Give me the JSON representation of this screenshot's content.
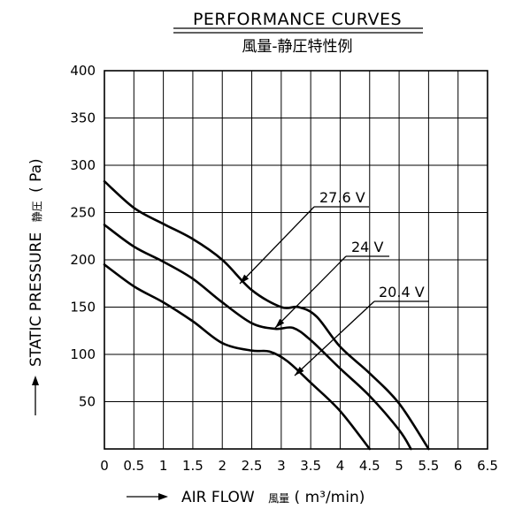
{
  "chart_data": {
    "type": "line",
    "title": "PERFORMANCE CURVES",
    "subtitle": "風量-静圧特性例",
    "xlabel": "AIR FLOW",
    "xlabel_jp": "風量",
    "xlabel_unit": "( m³/min)",
    "ylabel": "STATIC PRESSURE",
    "ylabel_jp": "静圧",
    "ylabel_unit": "( Pa)",
    "xlim": [
      0,
      6.5
    ],
    "ylim": [
      0,
      400
    ],
    "xticks": [
      0,
      0.5,
      1,
      1.5,
      2,
      2.5,
      3,
      3.5,
      4,
      4.5,
      5,
      5.5,
      6,
      6.5
    ],
    "xtick_labels": [
      "0",
      "0.5",
      "1",
      "1.5",
      "2",
      "2.5",
      "3",
      "3.5",
      "4",
      "4.5",
      "5",
      "5.5",
      "6",
      "6.5"
    ],
    "yticks": [
      50,
      100,
      150,
      200,
      250,
      300,
      350,
      400
    ],
    "ytick_labels": [
      "50",
      "100",
      "150",
      "200",
      "250",
      "300",
      "350",
      "400"
    ],
    "grid": true,
    "legend": "inline labels",
    "series": [
      {
        "name": "27.6 V",
        "x": [
          0,
          0.5,
          1,
          1.5,
          2,
          2.5,
          3,
          3.3,
          3.6,
          4,
          4.5,
          5,
          5.5
        ],
        "y": [
          283,
          255,
          238,
          222,
          200,
          168,
          150,
          150,
          140,
          108,
          80,
          48,
          0
        ]
      },
      {
        "name": "24 V",
        "x": [
          0,
          0.5,
          1,
          1.5,
          2,
          2.5,
          2.9,
          3.2,
          3.5,
          4,
          4.5,
          5,
          5.2
        ],
        "y": [
          237,
          214,
          198,
          180,
          155,
          133,
          127,
          128,
          115,
          85,
          56,
          20,
          0
        ]
      },
      {
        "name": "20.4 V",
        "x": [
          0,
          0.5,
          1,
          1.5,
          2,
          2.5,
          2.8,
          3.1,
          3.5,
          4,
          4.5
        ],
        "y": [
          195,
          172,
          155,
          135,
          112,
          104,
          103,
          93,
          70,
          40,
          0
        ]
      }
    ]
  }
}
